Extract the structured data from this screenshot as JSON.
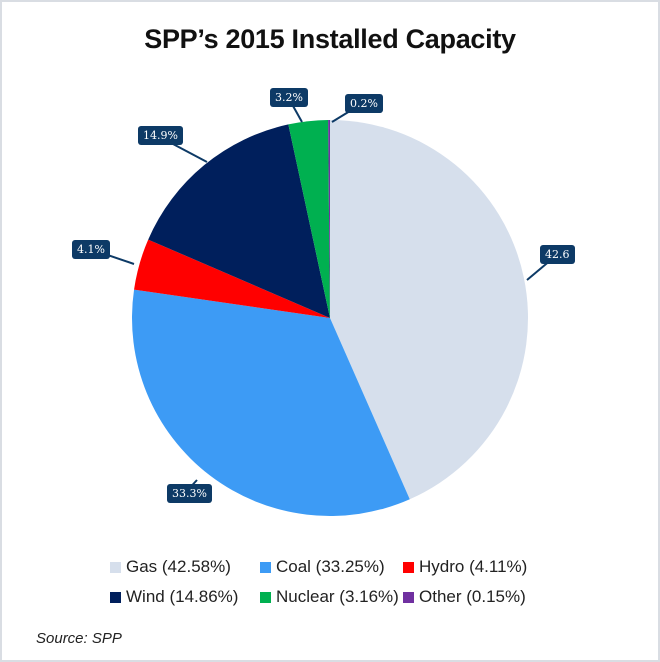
{
  "chart_data": {
    "type": "pie",
    "title": "SPP’s 2015 Installed Capacity",
    "categories": [
      "Gas",
      "Coal",
      "Hydro",
      "Wind",
      "Nuclear",
      "Other"
    ],
    "values": [
      42.58,
      33.25,
      4.11,
      14.86,
      3.16,
      0.15
    ],
    "colors": [
      "#d6dfec",
      "#3d9bf5",
      "#ff0000",
      "#001f5c",
      "#00b050",
      "#7030a0"
    ],
    "data_labels": [
      "42.6",
      "33.3%",
      "4.1%",
      "14.9%",
      "3.2%",
      "0.2%"
    ],
    "legend": [
      "Gas (42.58%)",
      "Coal (33.25%)",
      "Hydro (4.11%)",
      "Wind (14.86%)",
      "Nuclear (3.16%)",
      "Other (0.15%)"
    ],
    "legend_position": "bottom"
  },
  "source": "Source: SPP"
}
